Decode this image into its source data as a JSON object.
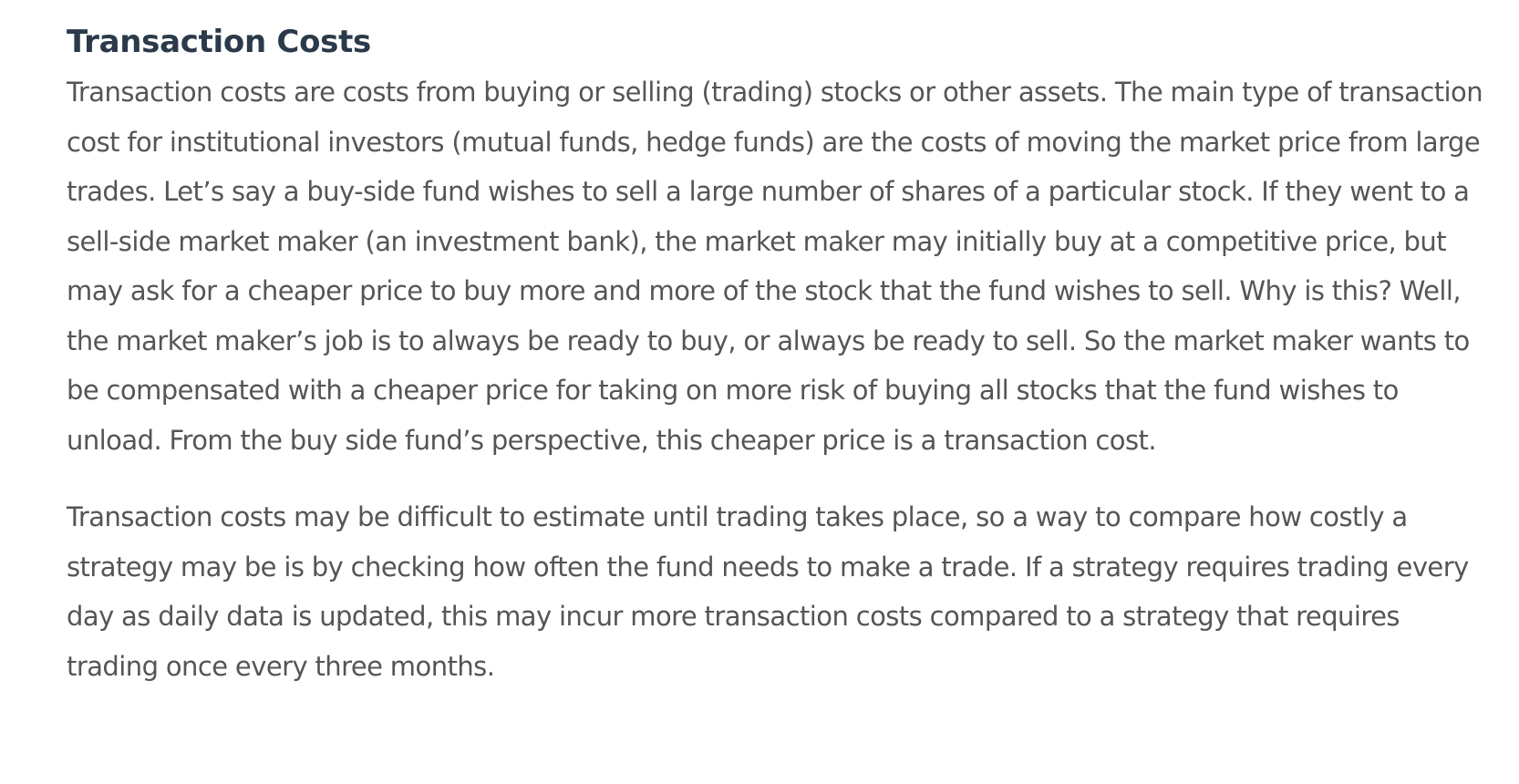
{
  "section": {
    "heading": "Transaction Costs",
    "paragraphs": [
      "Transaction costs are costs from buying or selling (trading) stocks or other assets. The main type of transaction cost for institutional investors (mutual funds, hedge funds) are the costs of moving the market price from large trades. Let’s say a buy-side fund wishes to sell a large number of shares of a particular stock. If they went to a sell-side market maker (an investment bank), the market maker may initially buy at a competitive price, but may ask for a cheaper price to buy more and more of the stock that the fund wishes to sell. Why is this? Well, the market maker’s job is to always be ready to buy, or always be ready to sell. So the market maker wants to be compensated with a cheaper price for taking on more risk of buying all stocks that the fund wishes to unload. From the buy side fund’s perspective, this cheaper price is a transaction cost.",
      "Transaction costs may be difficult to estimate until trading takes place, so a way to compare how costly a strategy may be is by checking how often the fund needs to make a trade. If a strategy requires trading every day as daily data is updated, this may incur more transaction costs compared to a strategy that requires trading once every three months."
    ]
  }
}
